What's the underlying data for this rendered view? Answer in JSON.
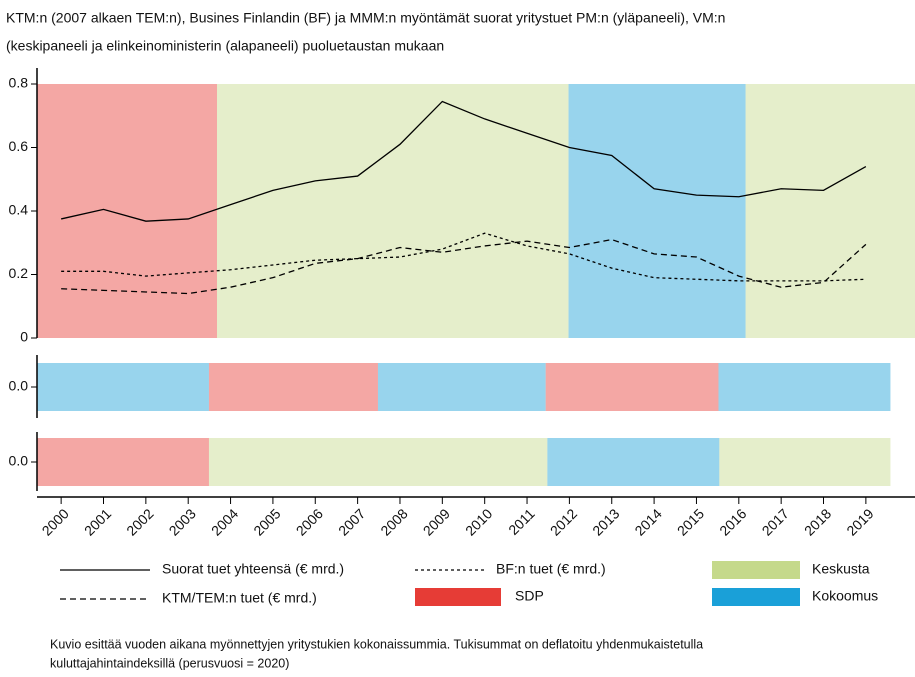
{
  "title": [
    "KTM:n (2007 alkaen TEM:n), Busines Finlandin (BF) ja MMM:n myöntämät suorat yritystuet PM:n (yläpaneeli), VM:n",
    "(keskipaneeli ja elinkeinoministerin (alapaneeli) puoluetaustan mukaan"
  ],
  "parties": [
    {
      "name": "SDP",
      "color": "#e63c36"
    },
    {
      "name": "Keskusta",
      "color": "#c5d98b"
    },
    {
      "name": "Kokoomus",
      "color": "#1aa0d8"
    }
  ],
  "chart_data": [
    {
      "type": "line",
      "xlim": [
        1999.43,
        2020.16
      ],
      "ylim": [
        0,
        0.8
      ],
      "yticks": [
        0,
        0.2,
        0.4,
        0.6,
        0.8
      ],
      "x": [
        2000,
        2001,
        2002,
        2003,
        2004,
        2005,
        2006,
        2007,
        2008,
        2009,
        2010,
        2011,
        2012,
        2013,
        2014,
        2015,
        2016,
        2017,
        2018,
        2019
      ],
      "series": [
        {
          "name": "Suorat tuet yhteensä (€ mrd.)",
          "color": "#000000",
          "dash": "none",
          "values": [
            0.375,
            0.405,
            0.368,
            0.375,
            0.42,
            0.465,
            0.495,
            0.51,
            0.61,
            0.745,
            0.69,
            0.645,
            0.6,
            0.575,
            0.47,
            0.45,
            0.445,
            0.47,
            0.465,
            0.54
          ]
        },
        {
          "name": "BF:n tuet (€ mrd.)",
          "color": "#000000",
          "dash": "3 3",
          "values": [
            0.21,
            0.21,
            0.195,
            0.205,
            0.215,
            0.23,
            0.245,
            0.25,
            0.255,
            0.28,
            0.33,
            0.29,
            0.265,
            0.22,
            0.19,
            0.185,
            0.18,
            0.18,
            0.18,
            0.185
          ]
        },
        {
          "name": "KTM/TEM:n tuet (€ mrd.)",
          "color": "#000000",
          "dash": "6 4",
          "values": [
            0.155,
            0.15,
            0.145,
            0.14,
            0.16,
            0.19,
            0.235,
            0.25,
            0.285,
            0.27,
            0.29,
            0.305,
            0.285,
            0.31,
            0.265,
            0.255,
            0.195,
            0.16,
            0.175,
            0.295
          ]
        }
      ],
      "spans": [
        {
          "start": 1999.43,
          "end": 2003.68,
          "party": "SDP"
        },
        {
          "start": 2003.68,
          "end": 2011.98,
          "party": "Keskusta"
        },
        {
          "start": 2011.98,
          "end": 2016.16,
          "party": "Kokoomus"
        },
        {
          "start": 2016.16,
          "end": 2020.16,
          "party": "Keskusta"
        }
      ]
    },
    {
      "type": "span",
      "xlim": [
        1999.43,
        2020.16
      ],
      "yticks": [
        {
          "value": 0,
          "label": "0.0"
        }
      ],
      "spans": [
        {
          "start": 1999.43,
          "end": 2003.49,
          "party": "Kokoomus"
        },
        {
          "start": 2003.49,
          "end": 2007.48,
          "party": "SDP"
        },
        {
          "start": 2007.48,
          "end": 2011.44,
          "party": "Kokoomus"
        },
        {
          "start": 2011.44,
          "end": 2015.52,
          "party": "SDP"
        },
        {
          "start": 2015.52,
          "end": 2019.58,
          "party": "Kokoomus"
        }
      ]
    },
    {
      "type": "span",
      "xlim": [
        1999.43,
        2020.16
      ],
      "yticks": [
        {
          "value": 0,
          "label": "0.0"
        }
      ],
      "xticks": [
        2000,
        2001,
        2002,
        2003,
        2004,
        2005,
        2006,
        2007,
        2008,
        2009,
        2010,
        2011,
        2012,
        2013,
        2014,
        2015,
        2016,
        2017,
        2018,
        2019
      ],
      "spans": [
        {
          "start": 1999.43,
          "end": 2003.49,
          "party": "SDP"
        },
        {
          "start": 2003.49,
          "end": 2011.48,
          "party": "Keskusta"
        },
        {
          "start": 2011.48,
          "end": 2015.54,
          "party": "Kokoomus"
        },
        {
          "start": 2015.54,
          "end": 2019.58,
          "party": "Keskusta"
        }
      ]
    }
  ],
  "note": [
    "Kuvio esittää vuoden aikana myönnettyjen yritystukien kokonaissummia. Tukisummat on deflatoitu yhdenmukaistetulla",
    "kuluttajahintaindeksillä (perusvuosi = 2020)"
  ]
}
